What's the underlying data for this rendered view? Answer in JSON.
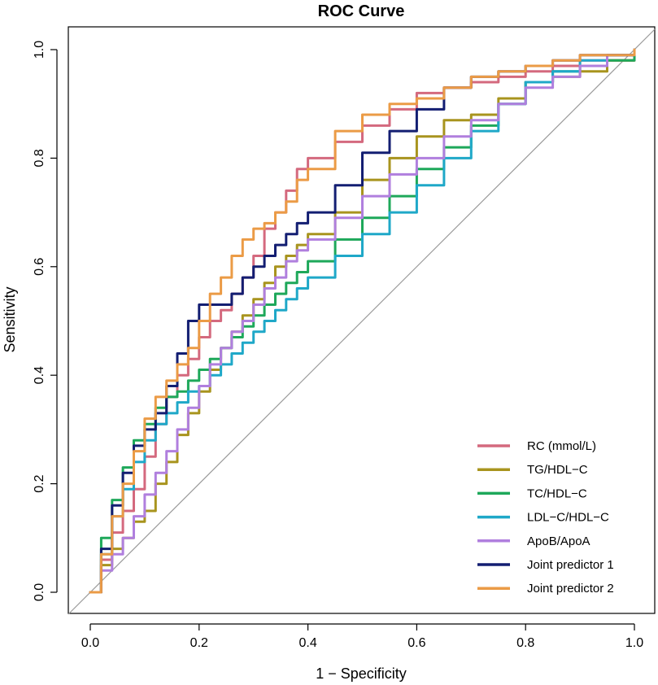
{
  "chart_data": {
    "type": "line",
    "title": "ROC Curve",
    "xlabel": "1 − Specificity",
    "ylabel": "Sensitivity",
    "xlim": [
      0,
      1
    ],
    "ylim": [
      0,
      1
    ],
    "x_ticks": [
      "0.0",
      "0.2",
      "0.4",
      "0.6",
      "0.8",
      "1.0"
    ],
    "y_ticks": [
      "0.0",
      "0.2",
      "0.4",
      "0.6",
      "0.8",
      "1.0"
    ],
    "reference_line": {
      "x": [
        0,
        1
      ],
      "y": [
        0,
        1
      ],
      "color": "#9a9a9a"
    },
    "legend_position": "bottom-right",
    "series": [
      {
        "name": "RC (mmol/L)",
        "color": "#d4697e",
        "x": [
          0,
          0.02,
          0.04,
          0.06,
          0.08,
          0.1,
          0.12,
          0.14,
          0.16,
          0.18,
          0.2,
          0.22,
          0.24,
          0.26,
          0.28,
          0.3,
          0.32,
          0.34,
          0.36,
          0.38,
          0.4,
          0.45,
          0.5,
          0.55,
          0.6,
          0.65,
          0.7,
          0.75,
          0.8,
          0.85,
          0.9,
          0.95,
          1.0
        ],
        "y": [
          0,
          0.06,
          0.11,
          0.15,
          0.19,
          0.25,
          0.31,
          0.36,
          0.4,
          0.43,
          0.47,
          0.5,
          0.52,
          0.55,
          0.58,
          0.62,
          0.67,
          0.7,
          0.74,
          0.78,
          0.8,
          0.83,
          0.86,
          0.89,
          0.92,
          0.93,
          0.94,
          0.95,
          0.96,
          0.97,
          0.98,
          0.98,
          1.0
        ]
      },
      {
        "name": "TG/HDL−C",
        "color": "#a8941e",
        "x": [
          0,
          0.02,
          0.04,
          0.06,
          0.08,
          0.1,
          0.12,
          0.14,
          0.16,
          0.18,
          0.2,
          0.22,
          0.24,
          0.26,
          0.28,
          0.3,
          0.32,
          0.34,
          0.36,
          0.38,
          0.4,
          0.45,
          0.5,
          0.55,
          0.6,
          0.65,
          0.7,
          0.75,
          0.8,
          0.85,
          0.9,
          0.95,
          1.0
        ],
        "y": [
          0,
          0.05,
          0.08,
          0.1,
          0.13,
          0.15,
          0.2,
          0.24,
          0.29,
          0.33,
          0.37,
          0.41,
          0.45,
          0.48,
          0.51,
          0.54,
          0.57,
          0.6,
          0.62,
          0.64,
          0.66,
          0.7,
          0.76,
          0.8,
          0.84,
          0.87,
          0.88,
          0.91,
          0.94,
          0.95,
          0.96,
          0.98,
          1.0
        ]
      },
      {
        "name": "TC/HDL−C",
        "color": "#1ea85a",
        "x": [
          0,
          0.02,
          0.04,
          0.06,
          0.08,
          0.1,
          0.12,
          0.14,
          0.16,
          0.18,
          0.2,
          0.22,
          0.24,
          0.26,
          0.28,
          0.3,
          0.32,
          0.34,
          0.36,
          0.38,
          0.4,
          0.45,
          0.5,
          0.55,
          0.6,
          0.65,
          0.7,
          0.75,
          0.8,
          0.85,
          0.9,
          0.95,
          1.0
        ],
        "y": [
          0,
          0.1,
          0.17,
          0.23,
          0.28,
          0.31,
          0.34,
          0.36,
          0.37,
          0.39,
          0.41,
          0.43,
          0.45,
          0.47,
          0.49,
          0.51,
          0.53,
          0.55,
          0.57,
          0.59,
          0.61,
          0.65,
          0.69,
          0.73,
          0.78,
          0.82,
          0.86,
          0.9,
          0.94,
          0.96,
          0.97,
          0.98,
          1.0
        ]
      },
      {
        "name": "LDL−C/HDL−C",
        "color": "#1fa8c8",
        "x": [
          0,
          0.02,
          0.04,
          0.06,
          0.08,
          0.1,
          0.12,
          0.14,
          0.16,
          0.18,
          0.2,
          0.22,
          0.24,
          0.26,
          0.28,
          0.3,
          0.32,
          0.34,
          0.36,
          0.38,
          0.4,
          0.45,
          0.5,
          0.55,
          0.6,
          0.65,
          0.7,
          0.75,
          0.8,
          0.85,
          0.9,
          0.95,
          1.0
        ],
        "y": [
          0,
          0.07,
          0.14,
          0.19,
          0.24,
          0.28,
          0.31,
          0.33,
          0.35,
          0.37,
          0.38,
          0.4,
          0.42,
          0.44,
          0.46,
          0.48,
          0.5,
          0.52,
          0.54,
          0.56,
          0.58,
          0.62,
          0.66,
          0.7,
          0.75,
          0.8,
          0.85,
          0.9,
          0.94,
          0.96,
          0.98,
          0.99,
          1.0
        ]
      },
      {
        "name": "ApoB/ApoA",
        "color": "#b07fde",
        "x": [
          0,
          0.02,
          0.04,
          0.06,
          0.08,
          0.1,
          0.12,
          0.14,
          0.16,
          0.18,
          0.2,
          0.22,
          0.24,
          0.26,
          0.28,
          0.3,
          0.32,
          0.34,
          0.36,
          0.38,
          0.4,
          0.45,
          0.5,
          0.55,
          0.6,
          0.65,
          0.7,
          0.75,
          0.8,
          0.85,
          0.9,
          0.95,
          1.0
        ],
        "y": [
          0,
          0.04,
          0.07,
          0.1,
          0.14,
          0.18,
          0.22,
          0.26,
          0.3,
          0.34,
          0.38,
          0.42,
          0.45,
          0.48,
          0.5,
          0.53,
          0.56,
          0.58,
          0.61,
          0.63,
          0.65,
          0.69,
          0.73,
          0.77,
          0.8,
          0.84,
          0.87,
          0.9,
          0.93,
          0.95,
          0.97,
          0.99,
          1.0
        ]
      },
      {
        "name": "Joint predictor 1",
        "color": "#131e72",
        "x": [
          0,
          0.02,
          0.04,
          0.06,
          0.08,
          0.1,
          0.12,
          0.14,
          0.16,
          0.18,
          0.2,
          0.22,
          0.24,
          0.26,
          0.28,
          0.3,
          0.32,
          0.34,
          0.36,
          0.38,
          0.4,
          0.45,
          0.5,
          0.55,
          0.6,
          0.65,
          0.7,
          0.75,
          0.8,
          0.85,
          0.9,
          0.95,
          1.0
        ],
        "y": [
          0,
          0.08,
          0.16,
          0.22,
          0.27,
          0.3,
          0.33,
          0.38,
          0.44,
          0.5,
          0.53,
          0.53,
          0.53,
          0.55,
          0.58,
          0.6,
          0.62,
          0.64,
          0.66,
          0.68,
          0.7,
          0.75,
          0.81,
          0.85,
          0.89,
          0.93,
          0.95,
          0.96,
          0.97,
          0.98,
          0.99,
          0.99,
          1.0
        ]
      },
      {
        "name": "Joint predictor 2",
        "color": "#eb9b46",
        "x": [
          0,
          0.02,
          0.04,
          0.06,
          0.08,
          0.1,
          0.12,
          0.14,
          0.16,
          0.18,
          0.2,
          0.22,
          0.24,
          0.26,
          0.28,
          0.3,
          0.32,
          0.34,
          0.36,
          0.38,
          0.4,
          0.45,
          0.5,
          0.55,
          0.6,
          0.65,
          0.7,
          0.75,
          0.8,
          0.85,
          0.9,
          0.95,
          1.0
        ],
        "y": [
          0,
          0.07,
          0.14,
          0.2,
          0.26,
          0.32,
          0.36,
          0.39,
          0.42,
          0.45,
          0.5,
          0.55,
          0.58,
          0.62,
          0.65,
          0.67,
          0.68,
          0.7,
          0.72,
          0.76,
          0.78,
          0.85,
          0.88,
          0.9,
          0.91,
          0.93,
          0.95,
          0.96,
          0.97,
          0.98,
          0.99,
          0.99,
          1.0
        ]
      }
    ]
  }
}
